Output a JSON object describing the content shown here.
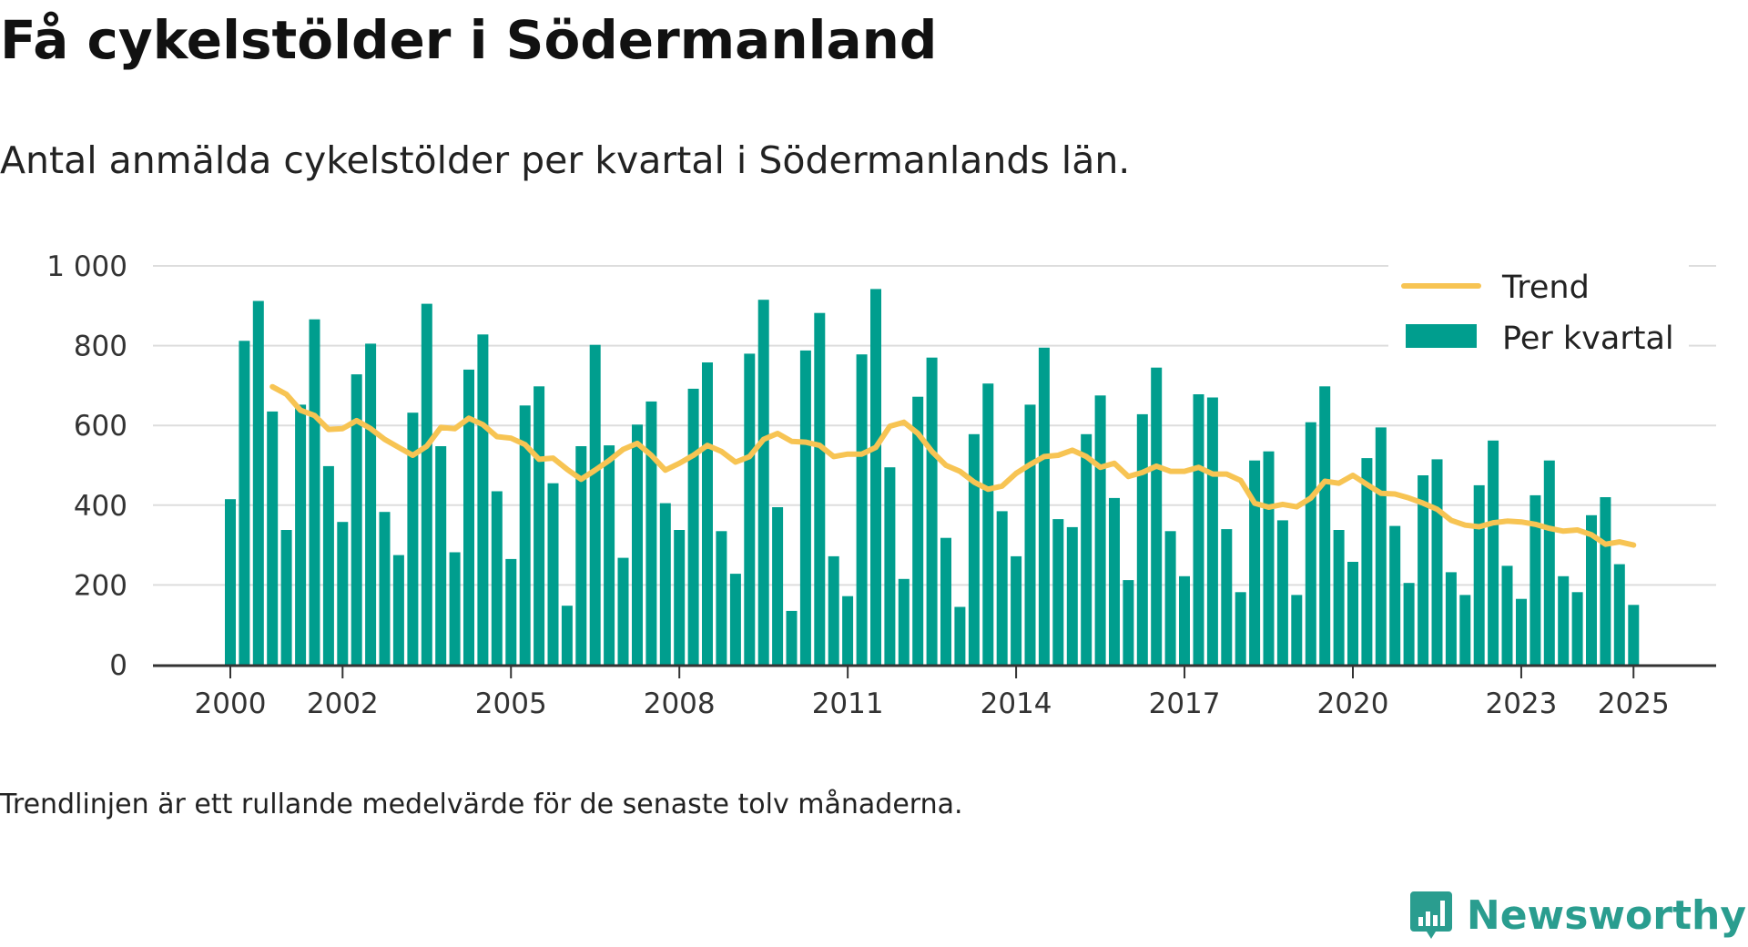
{
  "header": {
    "title": "Få cykelstölder i Södermanland",
    "subtitle": "Antal anmälda cykelstölder per kvartal i Södermanlands län."
  },
  "footer": {
    "note": "Trendlinjen är ett rullande medelvärde för de senaste tolv månaderna.",
    "brand": "Newsworthy"
  },
  "colors": {
    "bar": "#009e8e",
    "trend": "#f7c453",
    "grid": "#dddddd",
    "axis": "#333333",
    "brand": "#2a9d8f"
  },
  "chart_data": {
    "type": "bar",
    "y_ticks": [
      0,
      200,
      400,
      600,
      800,
      1000
    ],
    "y_tick_labels": [
      "0",
      "200",
      "400",
      "600",
      "800",
      "1 000"
    ],
    "ylim": [
      0,
      1000
    ],
    "x_ticks": [
      2000,
      2002,
      2005,
      2008,
      2011,
      2014,
      2017,
      2020,
      2023,
      2025
    ],
    "grid": true,
    "legend_position": "top-right",
    "legend": [
      "Trend",
      "Per kvartal"
    ],
    "series": [
      {
        "name": "Per kvartal",
        "type": "bar",
        "x_start": 2000.0,
        "x_step": 0.25,
        "values": [
          415,
          812,
          912,
          635,
          338,
          652,
          866,
          498,
          358,
          728,
          805,
          383,
          275,
          632,
          905,
          548,
          282,
          740,
          828,
          435,
          265,
          650,
          698,
          455,
          148,
          548,
          802,
          550,
          268,
          602,
          660,
          405,
          338,
          692,
          758,
          335,
          228,
          780,
          915,
          395,
          135,
          788,
          882,
          272,
          172,
          778,
          942,
          495,
          215,
          672,
          770,
          318,
          145,
          578,
          705,
          385,
          272,
          652,
          795,
          365,
          345,
          578,
          675,
          418,
          212,
          628,
          745,
          335,
          222,
          678,
          670,
          340,
          182,
          512,
          535,
          362,
          175,
          608,
          698,
          338,
          258,
          518,
          595,
          348,
          205,
          475,
          515,
          232,
          175,
          450,
          562,
          248,
          165,
          425,
          512,
          222,
          182,
          375,
          420,
          252,
          150
        ]
      },
      {
        "name": "Trend",
        "type": "line",
        "x_start": 2000.75,
        "x_step": 0.25,
        "values": [
          697,
          678,
          638,
          625,
          590,
          592,
          612,
          592,
          565,
          545,
          525,
          548,
          595,
          592,
          618,
          602,
          572,
          568,
          552,
          515,
          518,
          490,
          465,
          488,
          512,
          540,
          555,
          525,
          488,
          505,
          525,
          550,
          535,
          508,
          522,
          565,
          580,
          560,
          558,
          550,
          522,
          528,
          528,
          545,
          598,
          608,
          580,
          535,
          500,
          485,
          458,
          440,
          448,
          480,
          502,
          522,
          525,
          538,
          522,
          495,
          505,
          472,
          482,
          498,
          485,
          485,
          495,
          478,
          478,
          462,
          405,
          395,
          402,
          396,
          418,
          460,
          455,
          475,
          452,
          430,
          428,
          418,
          405,
          390,
          362,
          350,
          346,
          356,
          360,
          358,
          352,
          342,
          335,
          338,
          326,
          302,
          308,
          300
        ]
      }
    ]
  }
}
